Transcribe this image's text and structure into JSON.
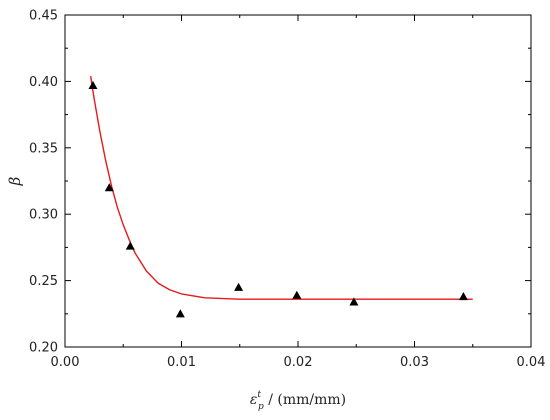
{
  "chart_data": {
    "type": "scatter",
    "title": "",
    "xlabel": {
      "symbol": "ε",
      "superscript": "t",
      "subscript": "p",
      "suffix": " / (mm/mm)"
    },
    "ylabel": "β",
    "xlim": [
      0.0,
      0.04
    ],
    "ylim": [
      0.2,
      0.45
    ],
    "x_ticks": [
      0.0,
      0.01,
      0.02,
      0.03,
      0.04
    ],
    "x_tick_labels": [
      "0.00",
      "0.01",
      "0.02",
      "0.03",
      "0.04"
    ],
    "y_ticks": [
      0.2,
      0.25,
      0.3,
      0.35,
      0.4,
      0.45
    ],
    "y_tick_labels": [
      "0.20",
      "0.25",
      "0.30",
      "0.35",
      "0.40",
      "0.45"
    ],
    "grid": false,
    "series": [
      {
        "kind": "points",
        "marker": "triangle",
        "color": "#000000",
        "x": [
          0.0024,
          0.0038,
          0.0056,
          0.0099,
          0.0149,
          0.0199,
          0.0248,
          0.0342
        ],
        "y": [
          0.397,
          0.32,
          0.276,
          0.225,
          0.245,
          0.239,
          0.234,
          0.238
        ]
      },
      {
        "kind": "fit-curve",
        "color": "#e41a1c",
        "x": [
          0.0022,
          0.0025,
          0.003,
          0.0035,
          0.004,
          0.0045,
          0.005,
          0.0055,
          0.006,
          0.007,
          0.008,
          0.009,
          0.01,
          0.012,
          0.015,
          0.02,
          0.025,
          0.03,
          0.035
        ],
        "y": [
          0.404,
          0.387,
          0.362,
          0.34,
          0.321,
          0.305,
          0.292,
          0.281,
          0.271,
          0.257,
          0.248,
          0.243,
          0.24,
          0.237,
          0.236,
          0.236,
          0.236,
          0.236,
          0.236
        ]
      }
    ]
  }
}
